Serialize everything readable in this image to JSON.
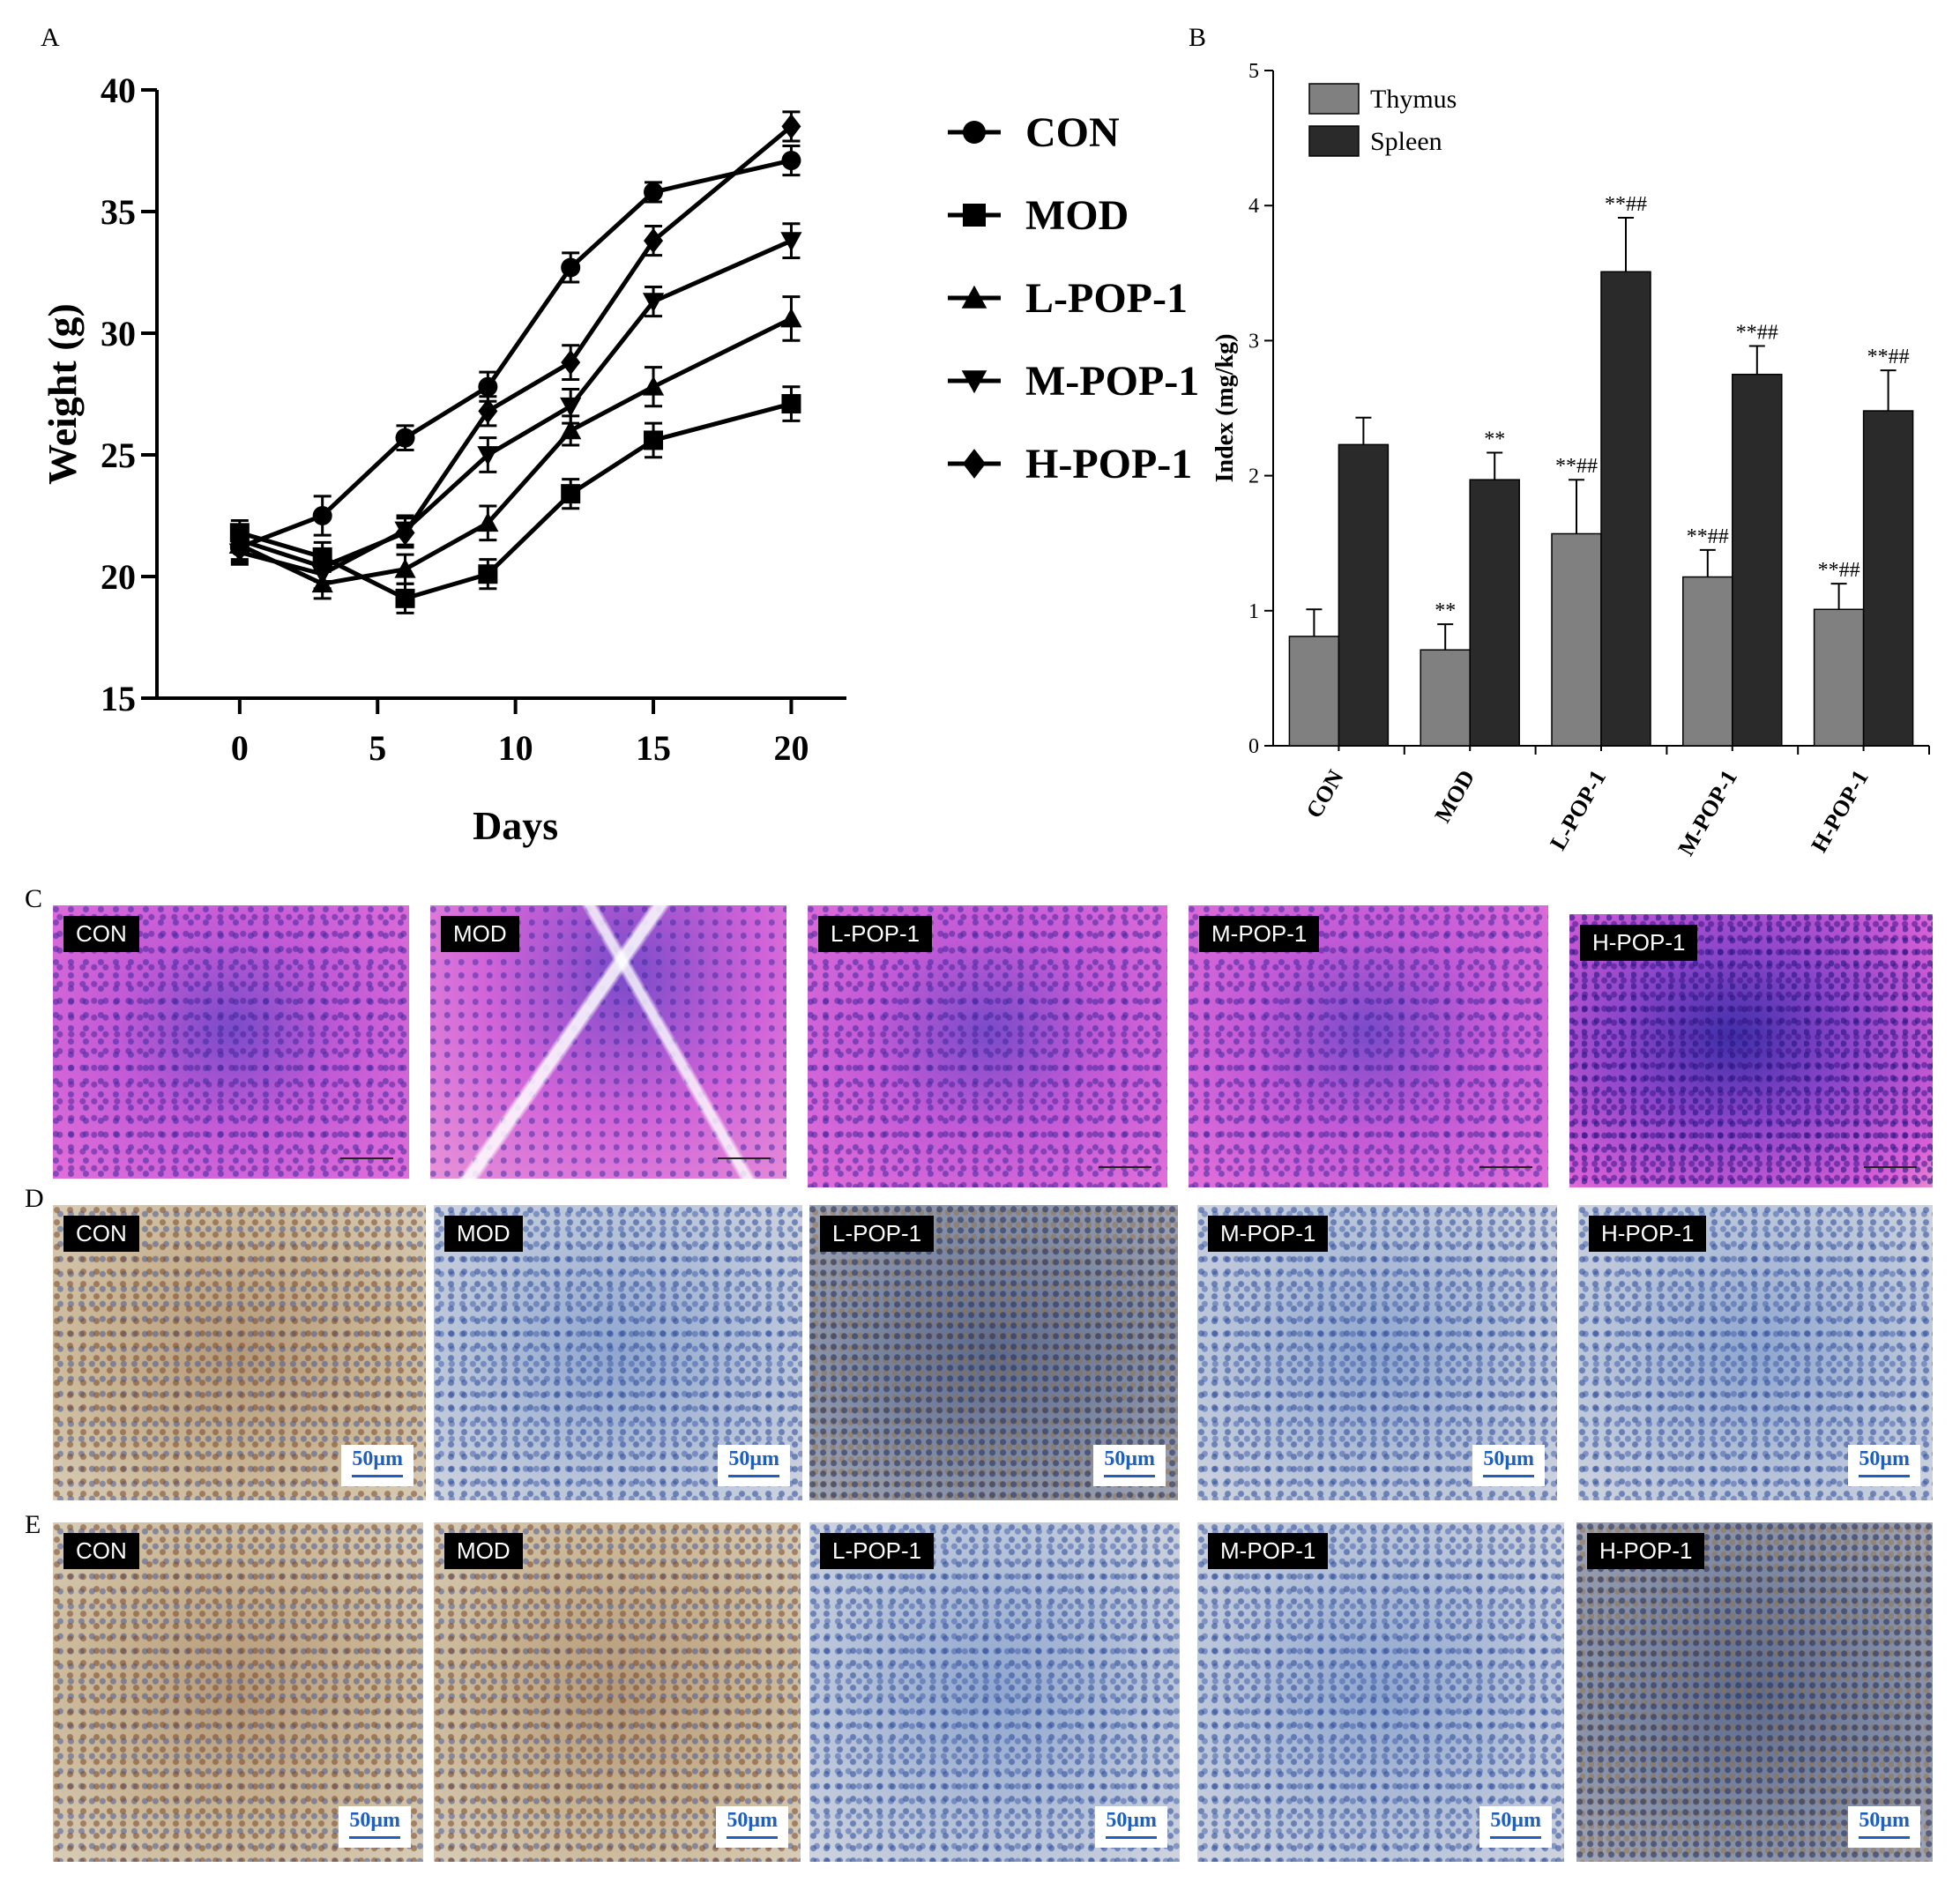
{
  "panel_letters": {
    "a": "A",
    "b": "B",
    "c": "C",
    "d": "D",
    "e": "E"
  },
  "chart_data": [
    {
      "type": "line",
      "panel": "A",
      "xlabel": "Days",
      "ylabel": "Weight (g)",
      "xlim": [
        -3,
        22
      ],
      "ylim": [
        15,
        40
      ],
      "xticks": [
        0,
        5,
        10,
        15,
        20
      ],
      "yticks": [
        15,
        20,
        25,
        30,
        35,
        40
      ],
      "x": [
        0,
        3,
        6,
        9,
        12,
        15,
        20
      ],
      "series": [
        {
          "name": "CON",
          "marker": "circle",
          "values": [
            21.2,
            22.5,
            25.7,
            27.8,
            32.7,
            35.8,
            37.1
          ],
          "errors": [
            0.6,
            0.8,
            0.5,
            0.6,
            0.6,
            0.4,
            0.6
          ]
        },
        {
          "name": "MOD",
          "marker": "square",
          "values": [
            21.8,
            20.8,
            19.1,
            20.1,
            23.4,
            25.6,
            27.1
          ],
          "errors": [
            0.5,
            0.6,
            0.6,
            0.6,
            0.6,
            0.7,
            0.7
          ]
        },
        {
          "name": "L-POP-1",
          "marker": "triangle-up",
          "values": [
            21.3,
            19.7,
            20.3,
            22.2,
            26.0,
            27.8,
            30.6
          ],
          "errors": [
            0.6,
            0.6,
            0.6,
            0.7,
            0.6,
            0.8,
            0.9
          ]
        },
        {
          "name": "M-POP-1",
          "marker": "triangle-down",
          "values": [
            21.0,
            20.1,
            21.9,
            25.0,
            27.0,
            31.3,
            33.8
          ],
          "errors": [
            0.5,
            0.6,
            0.6,
            0.7,
            0.7,
            0.6,
            0.7
          ]
        },
        {
          "name": "H-POP-1",
          "marker": "diamond",
          "values": [
            21.5,
            20.4,
            21.8,
            26.8,
            28.8,
            33.8,
            38.5
          ],
          "errors": [
            0.5,
            0.6,
            0.6,
            0.6,
            0.7,
            0.6,
            0.6
          ]
        }
      ]
    },
    {
      "type": "bar",
      "panel": "B",
      "ylabel": "Index (mg/kg)",
      "ylim": [
        0,
        5
      ],
      "yticks": [
        0,
        1,
        2,
        3,
        4,
        5
      ],
      "categories": [
        "CON",
        "MOD",
        "L-POP-1",
        "M-POP-1",
        "H-POP-1"
      ],
      "series": [
        {
          "name": "Thymus",
          "color": "#808080",
          "values": [
            0.81,
            0.71,
            1.57,
            1.25,
            1.01
          ],
          "errors": [
            0.2,
            0.19,
            0.4,
            0.2,
            0.19
          ],
          "labels": [
            "",
            "**",
            "**##",
            "**##",
            "**##"
          ]
        },
        {
          "name": "Spleen",
          "color": "#2a2a2a",
          "values": [
            2.23,
            1.97,
            3.51,
            2.75,
            2.48
          ],
          "errors": [
            0.2,
            0.2,
            0.4,
            0.21,
            0.3
          ],
          "labels": [
            "",
            "**",
            "**##",
            "**##",
            "**##"
          ]
        }
      ]
    }
  ],
  "row_c": {
    "labels": [
      "CON",
      "MOD",
      "L-POP-1",
      "M-POP-1",
      "H-POP-1"
    ]
  },
  "row_d": {
    "labels": [
      "CON",
      "MOD",
      "L-POP-1",
      "M-POP-1",
      "H-POP-1"
    ],
    "scale": "50μm"
  },
  "row_e": {
    "labels": [
      "CON",
      "MOD",
      "L-POP-1",
      "M-POP-1",
      "H-POP-1"
    ],
    "scale": "50μm"
  }
}
